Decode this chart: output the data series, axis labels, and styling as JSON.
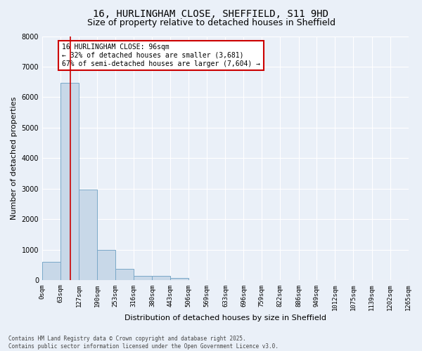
{
  "title": "16, HURLINGHAM CLOSE, SHEFFIELD, S11 9HD",
  "subtitle": "Size of property relative to detached houses in Sheffield",
  "xlabel": "Distribution of detached houses by size in Sheffield",
  "ylabel": "Number of detached properties",
  "bar_values": [
    600,
    6480,
    2980,
    1000,
    380,
    150,
    150,
    80,
    0,
    0,
    0,
    0,
    0,
    0,
    0,
    0,
    0,
    0,
    0,
    0
  ],
  "bin_edges": [
    0,
    63,
    127,
    190,
    253,
    316,
    380,
    443,
    506,
    569,
    633,
    696,
    759,
    822,
    886,
    949,
    1012,
    1075,
    1139,
    1202,
    1265
  ],
  "tick_labels": [
    "0sqm",
    "63sqm",
    "127sqm",
    "190sqm",
    "253sqm",
    "316sqm",
    "380sqm",
    "443sqm",
    "506sqm",
    "569sqm",
    "633sqm",
    "696sqm",
    "759sqm",
    "822sqm",
    "886sqm",
    "949sqm",
    "1012sqm",
    "1075sqm",
    "1139sqm",
    "1202sqm",
    "1265sqm"
  ],
  "bar_color": "#c8d8e8",
  "bar_edgecolor": "#7aa8c8",
  "vline_x": 96,
  "vline_color": "#cc0000",
  "ylim": [
    0,
    8000
  ],
  "yticks": [
    0,
    1000,
    2000,
    3000,
    4000,
    5000,
    6000,
    7000,
    8000
  ],
  "annotation_text": "16 HURLINGHAM CLOSE: 96sqm\n← 32% of detached houses are smaller (3,681)\n67% of semi-detached houses are larger (7,604) →",
  "annotation_box_color": "#ffffff",
  "annotation_edgecolor": "#cc0000",
  "footer_text": "Contains HM Land Registry data © Crown copyright and database right 2025.\nContains public sector information licensed under the Open Government Licence v3.0.",
  "background_color": "#eaf0f8",
  "plot_background": "#eaf0f8",
  "grid_color": "#ffffff",
  "title_fontsize": 10,
  "subtitle_fontsize": 9,
  "axis_label_fontsize": 8,
  "tick_fontsize": 6.5,
  "annotation_fontsize": 7,
  "footer_fontsize": 5.5
}
